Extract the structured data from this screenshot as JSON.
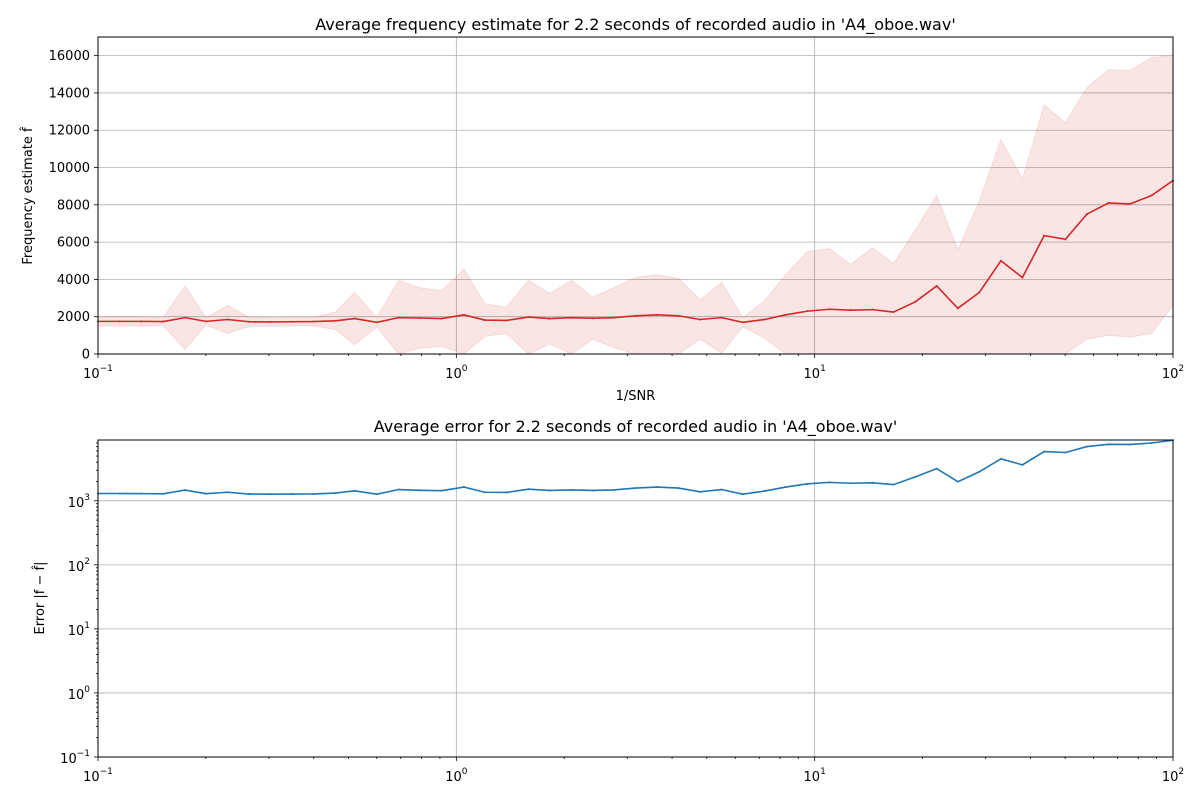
{
  "chart_data": [
    {
      "type": "area",
      "title": "Average frequency estimate for 2.2 seconds of recorded audio in 'A4_oboe.wav'",
      "xlabel": "1/SNR",
      "ylabel": "Frequency estimate f̂",
      "xscale": "log",
      "xlim": [
        0.1,
        100
      ],
      "ylim": [
        0,
        17000
      ],
      "grid": true,
      "xtick_labels": [
        {
          "value": 0.1,
          "base": "10",
          "exp": "−1"
        },
        {
          "value": 1,
          "base": "10",
          "exp": "0"
        },
        {
          "value": 10,
          "base": "10",
          "exp": "1"
        },
        {
          "value": 100,
          "base": "10",
          "exp": "2"
        }
      ],
      "yticks": [
        0,
        2000,
        4000,
        6000,
        8000,
        10000,
        12000,
        14000,
        16000
      ],
      "ytick_labels": [
        "0",
        "2000",
        "4000",
        "6000",
        "8000",
        "10000",
        "12000",
        "14000",
        "16000"
      ],
      "line_color": "#d62728",
      "band_color": "#d62728",
      "x": [
        0.1,
        0.115,
        0.132,
        0.152,
        0.175,
        0.2,
        0.23,
        0.264,
        0.303,
        0.348,
        0.4,
        0.46,
        0.52,
        0.6,
        0.69,
        0.79,
        0.91,
        1.05,
        1.2,
        1.38,
        1.59,
        1.82,
        2.1,
        2.4,
        2.75,
        3.16,
        3.63,
        4.17,
        4.79,
        5.5,
        6.3,
        7.25,
        8.3,
        9.55,
        11.0,
        12.6,
        14.5,
        16.6,
        19.1,
        21.9,
        25.1,
        28.8,
        33.1,
        38.0,
        43.7,
        50.1,
        57.5,
        66.1,
        75.9,
        87.1,
        100
      ],
      "y": [
        1750,
        1750,
        1750,
        1740,
        1950,
        1750,
        1850,
        1730,
        1720,
        1730,
        1740,
        1780,
        1900,
        1700,
        1950,
        1930,
        1900,
        2100,
        1820,
        1800,
        1980,
        1900,
        1950,
        1920,
        1950,
        2050,
        2100,
        2050,
        1850,
        1950,
        1700,
        1850,
        2100,
        2300,
        2400,
        2350,
        2380,
        2250,
        2800,
        3650,
        2450,
        3300,
        5000,
        4100,
        6350,
        6150,
        7500,
        8100,
        8050,
        8500,
        9300
      ],
      "y_upper": [
        2000,
        2000,
        2000,
        1960,
        3650,
        1950,
        2600,
        1980,
        1950,
        1960,
        1970,
        2250,
        3300,
        1950,
        3950,
        3550,
        3400,
        4550,
        2700,
        2500,
        3950,
        3250,
        3950,
        3050,
        3550,
        4100,
        4250,
        4050,
        2900,
        3850,
        1950,
        2850,
        4250,
        5500,
        5650,
        4800,
        5700,
        4850,
        6650,
        8500,
        5600,
        8200,
        11500,
        9400,
        13350,
        12400,
        14300,
        15250,
        15200,
        15900,
        16000
      ],
      "y_lower": [
        1500,
        1500,
        1500,
        1520,
        250,
        1550,
        1100,
        1480,
        1490,
        1500,
        1510,
        1310,
        500,
        1450,
        0,
        310,
        400,
        0,
        940,
        1100,
        0,
        550,
        0,
        790,
        350,
        0,
        0,
        0,
        800,
        50,
        1450,
        850,
        0,
        0,
        0,
        0,
        0,
        0,
        0,
        0,
        0,
        0,
        0,
        0,
        0,
        0,
        800,
        1000,
        900,
        1100,
        2600
      ]
    },
    {
      "type": "line",
      "title": "Average error for 2.2 seconds of recorded audio in 'A4_oboe.wav'",
      "xlabel": "",
      "ylabel": "Error |f − f̂|",
      "xscale": "log",
      "yscale": "log",
      "xlim": [
        0.1,
        100
      ],
      "ylim": [
        0.1,
        8900
      ],
      "grid": true,
      "xtick_labels": [
        {
          "value": 0.1,
          "base": "10",
          "exp": "−1"
        },
        {
          "value": 1,
          "base": "10",
          "exp": "0"
        },
        {
          "value": 10,
          "base": "10",
          "exp": "1"
        },
        {
          "value": 100,
          "base": "10",
          "exp": "2"
        }
      ],
      "ytick_labels": [
        {
          "value": 0.1,
          "base": "10",
          "exp": "−1"
        },
        {
          "value": 1,
          "base": "10",
          "exp": "0"
        },
        {
          "value": 10,
          "base": "10",
          "exp": "1"
        },
        {
          "value": 100,
          "base": "10",
          "exp": "2"
        },
        {
          "value": 1000,
          "base": "10",
          "exp": "3"
        }
      ],
      "line_color": "#1f77b4",
      "x": [
        0.1,
        0.115,
        0.132,
        0.152,
        0.175,
        0.2,
        0.23,
        0.264,
        0.303,
        0.348,
        0.4,
        0.46,
        0.52,
        0.6,
        0.69,
        0.79,
        0.91,
        1.05,
        1.2,
        1.38,
        1.59,
        1.82,
        2.1,
        2.4,
        2.75,
        3.16,
        3.63,
        4.17,
        4.79,
        5.5,
        6.3,
        7.25,
        8.3,
        9.55,
        11.0,
        12.6,
        14.5,
        16.6,
        19.1,
        21.9,
        25.1,
        28.8,
        33.1,
        38.0,
        43.7,
        50.1,
        57.5,
        66.1,
        75.9,
        87.1,
        100
      ],
      "y": [
        1300,
        1300,
        1295,
        1285,
        1470,
        1290,
        1360,
        1275,
        1270,
        1275,
        1280,
        1320,
        1430,
        1270,
        1500,
        1460,
        1440,
        1640,
        1360,
        1350,
        1520,
        1450,
        1480,
        1450,
        1480,
        1580,
        1640,
        1580,
        1380,
        1500,
        1270,
        1420,
        1640,
        1840,
        1940,
        1880,
        1910,
        1790,
        2360,
        3180,
        1990,
        2840,
        4520,
        3640,
        5870,
        5680,
        7020,
        7620,
        7580,
        7990,
        8820
      ]
    }
  ]
}
